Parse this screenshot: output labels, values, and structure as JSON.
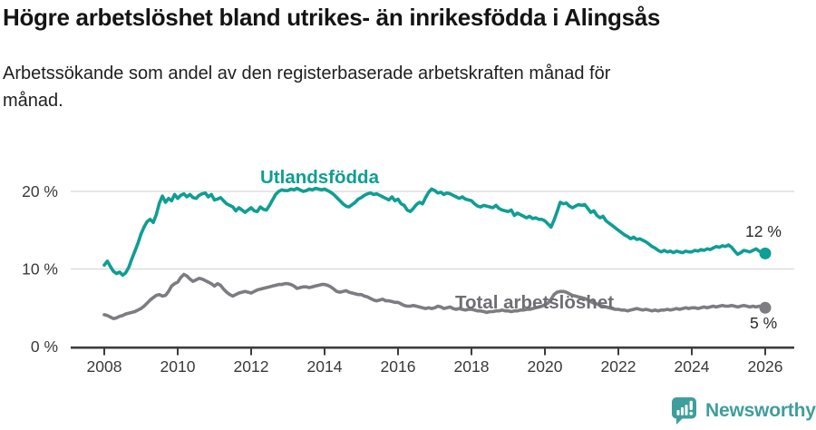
{
  "header": {
    "title": "Högre arbetslöshet bland utrikes- än inrikesfödda i Alingsås",
    "subtitle": "Arbetssökande som andel av den registerbaserade arbetskraften månad för\nmånad."
  },
  "chart_data": {
    "type": "line",
    "title": "Högre arbetslöshet bland utrikes- än inrikesfödda i Alingsås",
    "x_unit": "month",
    "x_start": "2008-01",
    "x_end": "2026-01",
    "x_tick_labels": [
      "2008",
      "2010",
      "2012",
      "2014",
      "2016",
      "2018",
      "2020",
      "2022",
      "2024",
      "2026"
    ],
    "y_axis": {
      "range": [
        0,
        22
      ],
      "ticks": [
        {
          "value": 0,
          "label": "0 %"
        },
        {
          "value": 10,
          "label": "10 %"
        },
        {
          "value": 20,
          "label": "20 %"
        }
      ],
      "grid": true
    },
    "legend_position": "inline-labels",
    "series": [
      {
        "name": "Utlandsfödda",
        "color": "#0f9e93",
        "end_label": "12 %",
        "end_value": 12,
        "values": [
          10.5,
          11.0,
          10.3,
          9.7,
          9.4,
          9.6,
          9.2,
          9.5,
          10.2,
          11.3,
          12.3,
          13.3,
          14.5,
          15.4,
          16.1,
          16.4,
          16.0,
          17.0,
          18.5,
          19.4,
          18.6,
          19.1,
          18.8,
          19.6,
          19.1,
          19.5,
          19.7,
          19.3,
          19.6,
          19.2,
          19.1,
          19.5,
          19.7,
          19.8,
          19.3,
          19.6,
          18.9,
          19.0,
          19.2,
          18.8,
          18.4,
          18.2,
          18.0,
          17.5,
          17.9,
          17.6,
          17.3,
          17.6,
          17.9,
          17.5,
          17.4,
          18.0,
          17.7,
          17.6,
          18.2,
          18.9,
          19.6,
          20.0,
          20.2,
          20.1,
          20.1,
          20.3,
          20.2,
          20.4,
          20.2,
          20.0,
          20.1,
          20.3,
          20.2,
          20.4,
          20.3,
          20.2,
          20.3,
          20.1,
          19.9,
          19.6,
          19.2,
          18.8,
          18.4,
          18.1,
          18.0,
          18.3,
          18.6,
          19.0,
          19.2,
          19.5,
          19.7,
          19.8,
          19.6,
          19.7,
          19.5,
          19.3,
          19.1,
          18.9,
          19.3,
          18.8,
          19.0,
          18.4,
          18.2,
          17.6,
          17.4,
          17.8,
          18.3,
          18.6,
          18.4,
          19.2,
          19.9,
          20.3,
          20.1,
          19.8,
          19.9,
          19.6,
          19.8,
          19.7,
          19.5,
          19.3,
          19.1,
          19.3,
          19.0,
          18.9,
          18.8,
          18.4,
          18.1,
          18.0,
          18.2,
          18.1,
          18.0,
          17.9,
          18.2,
          17.8,
          17.6,
          17.5,
          17.4,
          17.6,
          16.9,
          17.2,
          17.0,
          16.8,
          16.6,
          16.8,
          16.5,
          16.6,
          16.4,
          16.4,
          16.2,
          15.8,
          15.4,
          16.3,
          17.4,
          18.6,
          18.4,
          18.5,
          18.1,
          17.9,
          18.1,
          18.3,
          18.2,
          18.3,
          17.8,
          17.3,
          17.5,
          16.9,
          16.6,
          16.8,
          16.2,
          15.9,
          15.6,
          15.3,
          15.0,
          14.7,
          14.4,
          14.2,
          13.9,
          14.1,
          13.8,
          13.9,
          13.7,
          13.5,
          13.2,
          12.9,
          12.7,
          12.4,
          12.2,
          12.4,
          12.2,
          12.3,
          12.1,
          12.3,
          12.2,
          12.1,
          12.3,
          12.2,
          12.2,
          12.4,
          12.3,
          12.5,
          12.4,
          12.6,
          12.5,
          12.7,
          12.9,
          12.8,
          13.0,
          12.9,
          13.1,
          12.8,
          12.3,
          11.9,
          12.1,
          12.4,
          12.3,
          12.2,
          12.4,
          12.6,
          12.3,
          12.1,
          12.0
        ]
      },
      {
        "name": "Total arbetslöshet",
        "color": "#7c7c81",
        "end_label": "5 %",
        "end_value": 5,
        "values": [
          4.1,
          4.0,
          3.8,
          3.6,
          3.7,
          3.9,
          4.0,
          4.2,
          4.3,
          4.4,
          4.5,
          4.7,
          4.9,
          5.2,
          5.6,
          6.0,
          6.3,
          6.6,
          6.7,
          6.5,
          6.6,
          7.1,
          7.8,
          8.1,
          8.3,
          8.9,
          9.3,
          9.1,
          8.7,
          8.4,
          8.6,
          8.8,
          8.7,
          8.5,
          8.3,
          8.1,
          7.8,
          8.1,
          7.9,
          7.4,
          7.0,
          6.7,
          6.5,
          6.7,
          6.9,
          7.0,
          7.1,
          7.0,
          6.9,
          7.1,
          7.3,
          7.4,
          7.5,
          7.6,
          7.7,
          7.8,
          7.9,
          8.0,
          8.0,
          8.1,
          8.1,
          8.0,
          7.8,
          7.5,
          7.6,
          7.7,
          7.7,
          7.6,
          7.7,
          7.8,
          7.9,
          8.0,
          8.0,
          7.9,
          7.7,
          7.4,
          7.1,
          7.0,
          7.1,
          7.2,
          7.0,
          6.9,
          6.8,
          6.7,
          6.7,
          6.5,
          6.4,
          6.2,
          6.0,
          5.9,
          6.0,
          6.1,
          5.9,
          5.9,
          5.8,
          5.7,
          5.7,
          5.5,
          5.3,
          5.2,
          5.2,
          5.3,
          5.2,
          5.1,
          5.0,
          4.9,
          5.0,
          4.9,
          5.0,
          5.2,
          5.1,
          4.9,
          5.0,
          5.1,
          4.9,
          4.8,
          4.9,
          4.8,
          4.7,
          4.8,
          4.8,
          4.7,
          4.6,
          4.6,
          4.5,
          4.4,
          4.5,
          4.5,
          4.6,
          4.6,
          4.7,
          4.6,
          4.6,
          4.5,
          4.6,
          4.6,
          4.7,
          4.7,
          4.8,
          4.8,
          4.9,
          5.0,
          5.1,
          5.2,
          5.4,
          5.6,
          6.1,
          6.7,
          7.0,
          7.1,
          7.1,
          7.0,
          6.8,
          6.6,
          6.5,
          6.4,
          6.3,
          6.2,
          6.0,
          5.8,
          5.6,
          5.5,
          5.3,
          5.2,
          5.1,
          5.0,
          4.9,
          4.8,
          4.8,
          4.7,
          4.7,
          4.6,
          4.7,
          4.8,
          4.9,
          4.8,
          4.7,
          4.8,
          4.7,
          4.6,
          4.7,
          4.6,
          4.7,
          4.7,
          4.8,
          4.7,
          4.8,
          4.9,
          4.8,
          4.9,
          5.0,
          4.9,
          5.0,
          5.0,
          4.9,
          5.0,
          5.1,
          5.0,
          5.1,
          5.2,
          5.1,
          5.2,
          5.3,
          5.2,
          5.2,
          5.3,
          5.2,
          5.1,
          5.2,
          5.3,
          5.2,
          5.1,
          5.2,
          5.1,
          5.2,
          5.1,
          5.0
        ]
      }
    ],
    "colors": {
      "grid": "#d8d8d8",
      "axis": "#3d3d3d",
      "tick_text": "#3a3a3a",
      "end_label_text": "#2a2a2a",
      "brand_teal": "#3f9e9c"
    }
  },
  "footer": {
    "brand": "Newsworthy"
  }
}
